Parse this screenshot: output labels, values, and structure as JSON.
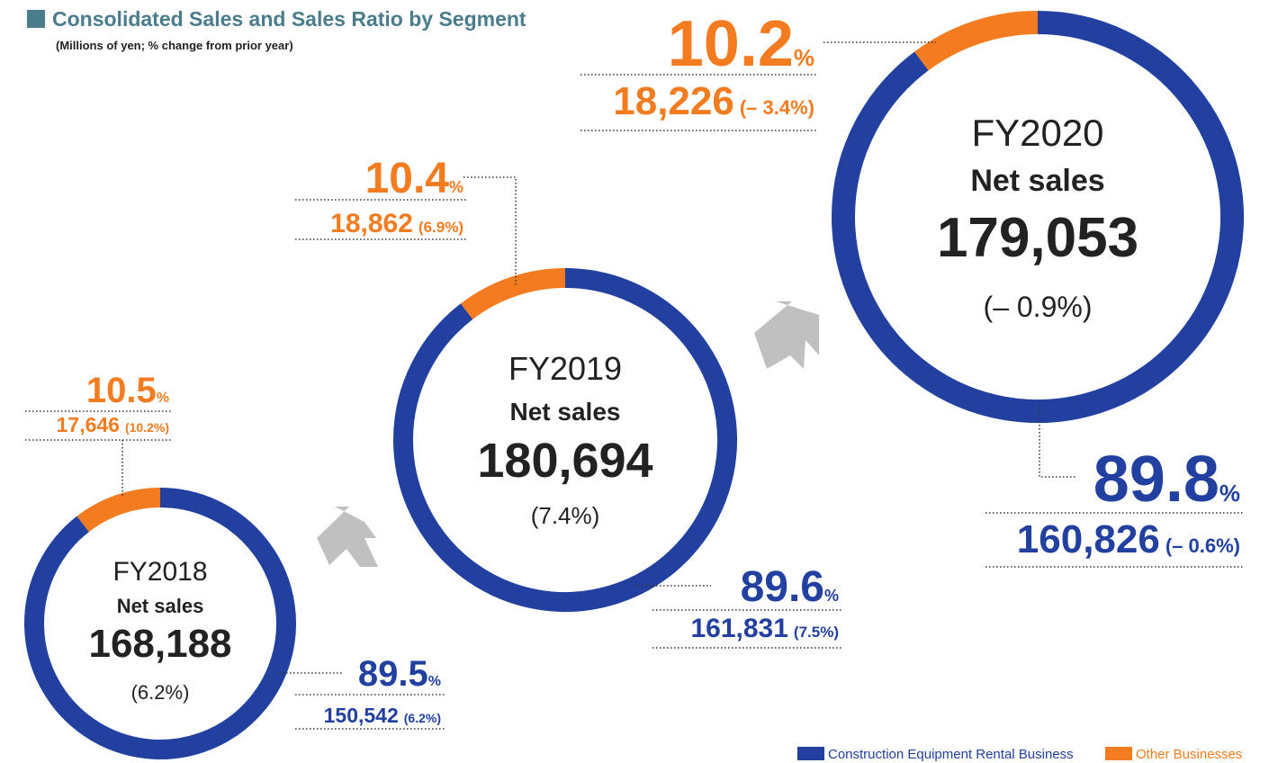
{
  "title": "Consolidated Sales and Sales Ratio by Segment",
  "subtitle": "(Millions of yen; % change from prior year)",
  "chart_data": [
    {
      "type": "donut",
      "title": "FY2018",
      "subtitle": "Net sales",
      "total": 168188,
      "total_label": "168,188",
      "total_change": 6.2,
      "total_change_label": "(6.2%)",
      "categories": [
        "Construction Equipment Rental Business",
        "Other Businesses"
      ],
      "colors": [
        "#2140a0",
        "#f47c20"
      ],
      "values": [
        89.5,
        10.5
      ],
      "value_unit": "%",
      "sales": [
        150542,
        17646
      ],
      "sales_labels": [
        "150,542",
        "17,646"
      ],
      "changes": [
        6.2,
        10.2
      ],
      "change_labels": [
        "(6.2%)",
        "(10.2%)"
      ]
    },
    {
      "type": "donut",
      "title": "FY2019",
      "subtitle": "Net sales",
      "total": 180694,
      "total_label": "180,694",
      "total_change": 7.4,
      "total_change_label": "(7.4%)",
      "categories": [
        "Construction Equipment Rental Business",
        "Other Businesses"
      ],
      "colors": [
        "#2140a0",
        "#f47c20"
      ],
      "values": [
        89.6,
        10.4
      ],
      "value_unit": "%",
      "sales": [
        161831,
        18862
      ],
      "sales_labels": [
        "161,831",
        "18,862"
      ],
      "changes": [
        7.5,
        6.9
      ],
      "change_labels": [
        "(7.5%)",
        "(6.9%)"
      ]
    },
    {
      "type": "donut",
      "title": "FY2020",
      "subtitle": "Net sales",
      "total": 179053,
      "total_label": "179,053",
      "total_change": -0.9,
      "total_change_label": "(– 0.9%)",
      "categories": [
        "Construction Equipment Rental Business",
        "Other Businesses"
      ],
      "colors": [
        "#2140a0",
        "#f47c20"
      ],
      "values": [
        89.8,
        10.2
      ],
      "value_unit": "%",
      "sales": [
        160826,
        18226
      ],
      "sales_labels": [
        "160,826",
        "18,226"
      ],
      "changes": [
        -0.6,
        -3.4
      ],
      "change_labels": [
        "(– 0.6%)",
        "(– 3.4%)"
      ]
    }
  ]
}
